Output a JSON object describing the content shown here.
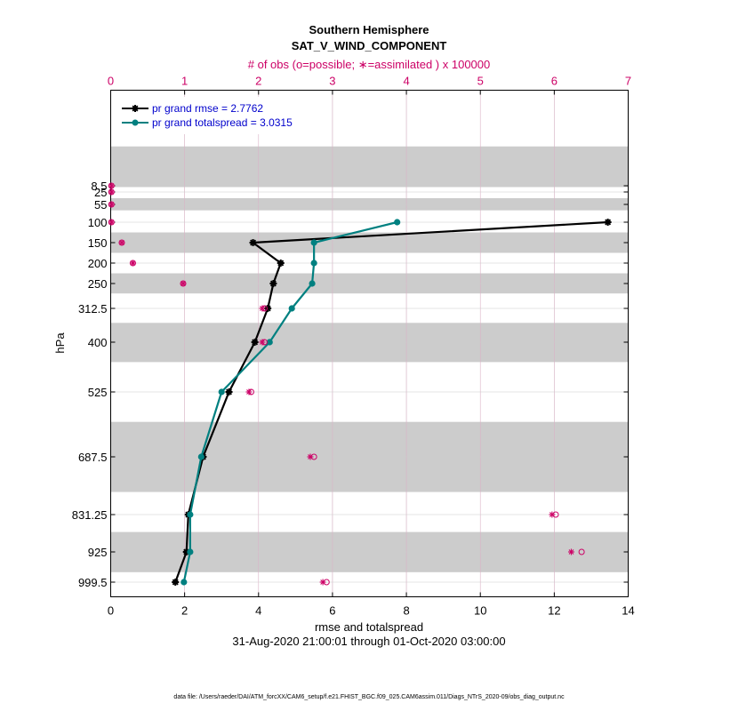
{
  "chart_data": {
    "type": "line",
    "title": "Southern Hemisphere",
    "subtitle": "SAT_V_WIND_COMPONENT",
    "top_axis_label": "# of obs (o=possible; ∗=assimilated ) x 100000",
    "xlabel": "rmse and totalspread",
    "ylabel": "hPa",
    "date_range": "31-Aug-2020 21:00:01 through 01-Oct-2020 03:00:00",
    "footer": "data file: /Users/raeder/DAI/ATM_forcXX/CAM6_setup/f.e21.FHIST_BGC.f09_025.CAM6assim.011/Diags_NTrS_2020-09/obs_diag_output.nc",
    "xlim": [
      0,
      14
    ],
    "xticks": [
      "0",
      "2",
      "4",
      "6",
      "8",
      "10",
      "12",
      "14"
    ],
    "top_xlim": [
      0,
      7
    ],
    "top_xticks": [
      "0",
      "1",
      "2",
      "3",
      "4",
      "5",
      "6",
      "7"
    ],
    "levels": [
      8.5,
      25,
      55,
      100,
      150,
      200,
      250,
      312.5,
      400,
      525,
      687.5,
      831.25,
      925,
      999.5
    ],
    "level_labels": [
      "8.5",
      "25",
      "55",
      "100",
      "150",
      "200",
      "250",
      "312.5",
      "400",
      "525",
      "687.5",
      "831.25",
      "925",
      "999.5"
    ],
    "shaded_layers": [
      [
        5,
        12
      ],
      [
        40,
        70
      ],
      [
        125,
        175
      ],
      [
        225,
        275
      ],
      [
        350,
        450
      ],
      [
        600,
        775
      ],
      [
        875,
        975
      ]
    ],
    "series": [
      {
        "name": "pr grand rmse",
        "legend": "pr grand rmse = 2.7762",
        "color": "#000000",
        "marker": "star",
        "levels": [
          100,
          150,
          200,
          250,
          312.5,
          400,
          525,
          687.5,
          831.25,
          925,
          999.5
        ],
        "values": [
          13.45,
          3.85,
          4.6,
          4.4,
          4.25,
          3.9,
          3.2,
          2.5,
          2.1,
          2.05,
          1.75
        ]
      },
      {
        "name": "pr grand totalspread",
        "legend": "pr grand totalspread = 3.0315",
        "color": "#008080",
        "marker": "circle",
        "levels": [
          100,
          150,
          200,
          250,
          312.5,
          400,
          525,
          687.5,
          831.25,
          925,
          999.5
        ],
        "values": [
          7.75,
          5.5,
          5.5,
          5.45,
          4.9,
          4.3,
          3.0,
          2.45,
          2.15,
          2.15,
          1.98
        ]
      }
    ],
    "obs_counts": {
      "units": "x 100000",
      "levels": [
        8.5,
        25,
        55,
        100,
        150,
        200,
        250,
        312.5,
        400,
        525,
        687.5,
        831.25,
        925,
        999.5
      ],
      "possible": [
        0.01,
        0.01,
        0.01,
        0.01,
        0.15,
        0.3,
        0.98,
        2.08,
        2.08,
        1.9,
        2.75,
        6.02,
        6.37,
        2.92
      ],
      "assimilated": [
        0.01,
        0.01,
        0.01,
        0.01,
        0.15,
        0.3,
        0.98,
        2.05,
        2.05,
        1.87,
        2.7,
        5.97,
        6.23,
        2.87
      ]
    },
    "colors": {
      "obs": "#cc0066",
      "shade": "#cccccc",
      "grid": "#cccccc"
    }
  }
}
